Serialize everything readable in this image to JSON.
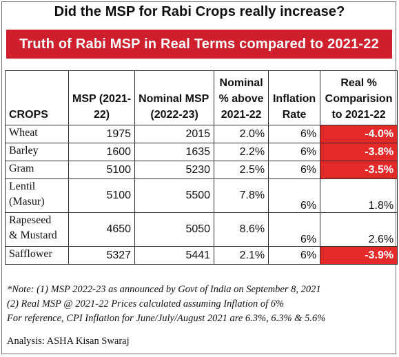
{
  "title": "Did the MSP for Rabi Crops really increase?",
  "banner": {
    "text": "Truth of Rabi MSP in Real Terms compared to 2021-22",
    "color": "#cf1f2c"
  },
  "table": {
    "headers": {
      "crop": "CROPS",
      "msp_2021_a": "MSP (2021-",
      "msp_2021_b": "22)",
      "nominal_msp_a": "Nominal MSP",
      "nominal_msp_b": "(2022-23)",
      "nominal_pct_a": "Nominal",
      "nominal_pct_b": "% above",
      "nominal_pct_c": "2021-22",
      "inflation_a": "Inflation",
      "inflation_b": "Rate",
      "real_a": "Real %",
      "real_b": "Comparision",
      "real_c": "to 2021-22"
    },
    "rows": [
      {
        "crop": "Wheat",
        "crop2": "",
        "msp_2021_22": "1975",
        "nominal_msp_2022_23": "2015",
        "nominal_pct_above": "2.0%",
        "inflation_rate": "6%",
        "real_pct": "-4.0%",
        "negative": true
      },
      {
        "crop": "Barley",
        "crop2": "",
        "msp_2021_22": "1600",
        "nominal_msp_2022_23": "1635",
        "nominal_pct_above": "2.2%",
        "inflation_rate": "6%",
        "real_pct": "-3.8%",
        "negative": true
      },
      {
        "crop": "Gram",
        "crop2": "",
        "msp_2021_22": "5100",
        "nominal_msp_2022_23": "5230",
        "nominal_pct_above": "2.5%",
        "inflation_rate": "6%",
        "real_pct": "-3.5%",
        "negative": true
      },
      {
        "crop": "Lentil",
        "crop2": "(Masur)",
        "msp_2021_22": "5100",
        "nominal_msp_2022_23": "5500",
        "nominal_pct_above": "7.8%",
        "inflation_rate": "6%",
        "real_pct": "1.8%",
        "negative": false
      },
      {
        "crop": "Rapeseed",
        "crop2": "& Mustard",
        "msp_2021_22": "4650",
        "nominal_msp_2022_23": "5050",
        "nominal_pct_above": "8.6%",
        "inflation_rate": "6%",
        "real_pct": "2.6%",
        "negative": false
      },
      {
        "crop": "Safflower",
        "crop2": "",
        "msp_2021_22": "5327",
        "nominal_msp_2022_23": "5441",
        "nominal_pct_above": "2.1%",
        "inflation_rate": "6%",
        "real_pct": "-3.9%",
        "negative": true
      }
    ],
    "negative_color": "#e52a2a"
  },
  "notes": [
    "*Note: (1) MSP 2022-23 as announced by Govt of India on September 8, 2021",
    "(2) Real MSP @ 2021-22 Prices calculated assuming Inflation of 6%",
    "For reference, CPI Inflation for June/July/August 2021 are 6.3%, 6.3% & 5.6%"
  ],
  "analysis": "Analysis: ASHA Kisan Swaraj"
}
